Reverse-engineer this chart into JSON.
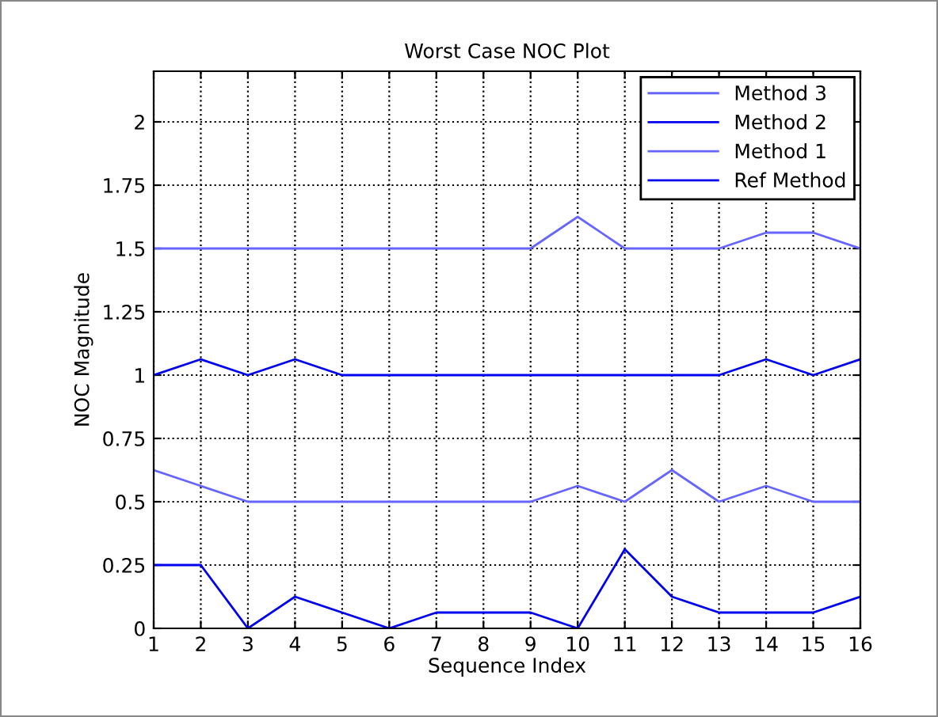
{
  "chart_data": {
    "type": "line",
    "title": "Worst Case NOC Plot",
    "xlabel": "Sequence Index",
    "ylabel": "NOC Magnitude",
    "x": [
      1,
      2,
      3,
      4,
      5,
      6,
      7,
      8,
      9,
      10,
      11,
      12,
      13,
      14,
      15,
      16
    ],
    "series": [
      {
        "name": "Method 3",
        "color": "#6666ff",
        "values": [
          1.5,
          1.5,
          1.5,
          1.5,
          1.5,
          1.5,
          1.5,
          1.5,
          1.5,
          1.625,
          1.5,
          1.5,
          1.5,
          1.5625,
          1.5625,
          1.5
        ]
      },
      {
        "name": "Method 2",
        "color": "#0000ee",
        "values": [
          1,
          1.0625,
          1,
          1.0625,
          1,
          1,
          1,
          1,
          1,
          1,
          1,
          1,
          1,
          1.0625,
          1,
          1.0625
        ]
      },
      {
        "name": "Method 1",
        "color": "#6666ff",
        "values": [
          0.625,
          0.5625,
          0.5,
          0.5,
          0.5,
          0.5,
          0.5,
          0.5,
          0.5,
          0.5625,
          0.5,
          0.625,
          0.5,
          0.5625,
          0.5,
          0.5
        ]
      },
      {
        "name": "Ref Method",
        "color": "#0000ee",
        "values": [
          0.25,
          0.25,
          0,
          0.125,
          0.0625,
          0,
          0.0625,
          0.0625,
          0.0625,
          0,
          0.3125,
          0.125,
          0.0625,
          0.0625,
          0.0625,
          0.125
        ]
      }
    ],
    "xlim": [
      1,
      16
    ],
    "xticks": [
      1,
      2,
      3,
      4,
      5,
      6,
      7,
      8,
      9,
      10,
      11,
      12,
      13,
      14,
      15,
      16
    ],
    "ylim": [
      0,
      2.2
    ],
    "yticks": [
      0,
      0.25,
      0.5,
      0.75,
      1,
      1.25,
      1.5,
      1.75,
      2
    ],
    "grid": true,
    "legend": "top right",
    "marker": "none",
    "line_style": "solid"
  }
}
